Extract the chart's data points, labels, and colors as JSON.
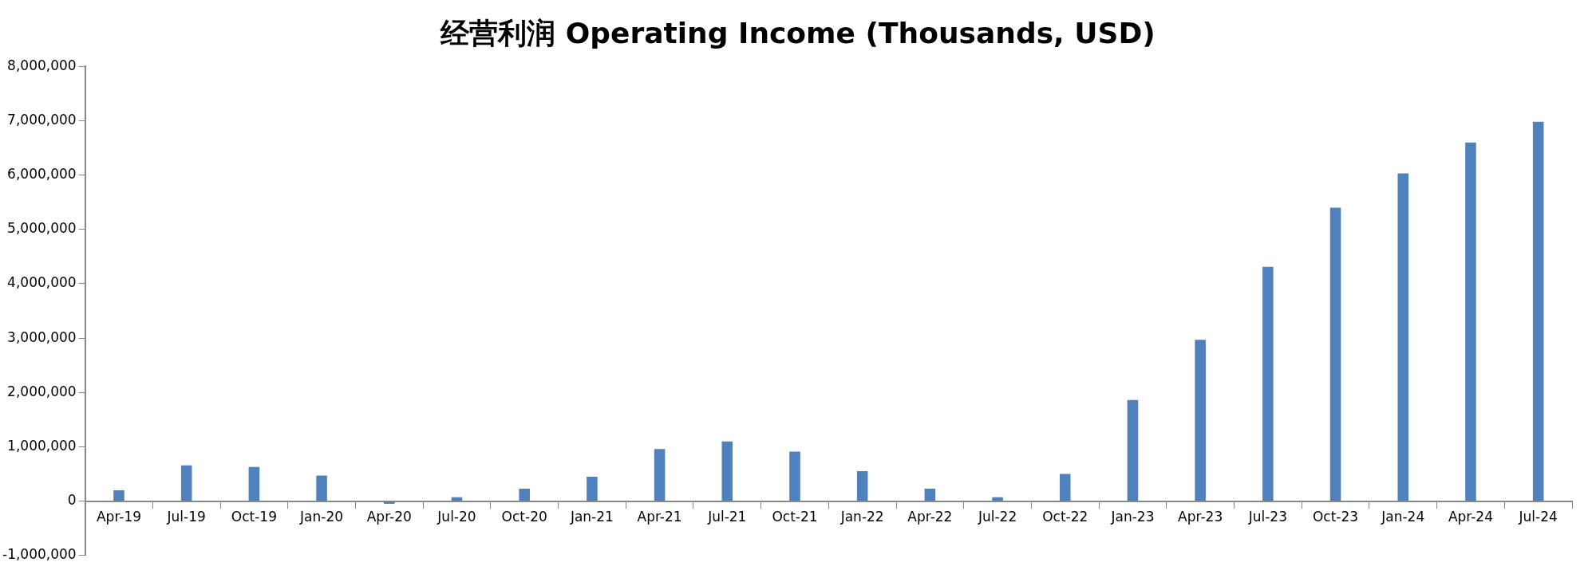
{
  "chart_data": {
    "type": "bar",
    "title": "经营利润 Operating Income (Thousands, USD)",
    "categories": [
      "Apr-19",
      "Jul-19",
      "Oct-19",
      "Jan-20",
      "Apr-20",
      "Jul-20",
      "Oct-20",
      "Jan-21",
      "Apr-21",
      "Jul-21",
      "Oct-21",
      "Jan-22",
      "Apr-22",
      "Jul-22",
      "Oct-22",
      "Jan-23",
      "Apr-23",
      "Jul-23",
      "Oct-23",
      "Jan-24",
      "Apr-24",
      "Jul-24"
    ],
    "values": [
      200000,
      660000,
      630000,
      470000,
      -50000,
      70000,
      230000,
      450000,
      960000,
      1100000,
      910000,
      550000,
      230000,
      70000,
      500000,
      1860000,
      2970000,
      4310000,
      5400000,
      6030000,
      6600000,
      6980000
    ],
    "color": "#4f81bd",
    "ylim": [
      -1000000,
      8000000
    ],
    "yticks": [
      {
        "value": -1000000,
        "label": "-1,000,000"
      },
      0,
      {
        "value": 1000000,
        "label": "1,000,000"
      },
      {
        "value": 2000000,
        "label": "2,000,000"
      },
      {
        "value": 3000000,
        "label": "3,000,000"
      },
      {
        "value": 4000000,
        "label": "4,000,000"
      },
      {
        "value": 5000000,
        "label": "5,000,000"
      },
      {
        "value": 6000000,
        "label": "6,000,000"
      },
      {
        "value": 7000000,
        "label": "7,000,000"
      },
      {
        "value": 8000000,
        "label": "8,000,000"
      }
    ],
    "grid": false,
    "legend": false
  }
}
